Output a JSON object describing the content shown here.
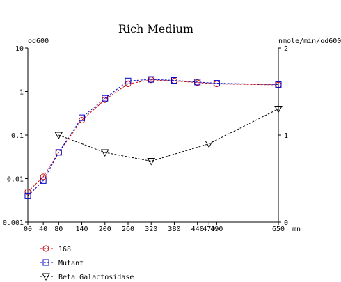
{
  "chart_data": {
    "type": "line",
    "title": "Rich Medium",
    "left_axis": {
      "label": "od600",
      "scale": "log",
      "range": [
        0.001,
        10
      ],
      "ticks": [
        {
          "value": 10,
          "label": "10"
        },
        {
          "value": 1,
          "label": "1"
        },
        {
          "value": 0.1,
          "label": "0.1"
        },
        {
          "value": 0.01,
          "label": "0.01"
        },
        {
          "value": 0.001,
          "label": "0.001"
        }
      ]
    },
    "right_axis": {
      "label": "nmole/min/od600",
      "scale": "linear",
      "range": [
        0,
        2
      ],
      "ticks": [
        {
          "value": 2,
          "label": "2"
        },
        {
          "value": 1,
          "label": "1"
        },
        {
          "value": 0,
          "label": "0"
        }
      ]
    },
    "x_axis": {
      "unit_label": "mn",
      "range": [
        0,
        650
      ],
      "ticks": [
        {
          "value": 0,
          "label": "00"
        },
        {
          "value": 40,
          "label": "40"
        },
        {
          "value": 80,
          "label": "80"
        },
        {
          "value": 140,
          "label": "140"
        },
        {
          "value": 200,
          "label": "200"
        },
        {
          "value": 260,
          "label": "260"
        },
        {
          "value": 320,
          "label": "320"
        },
        {
          "value": 380,
          "label": "380"
        },
        {
          "value": 440,
          "label": "440"
        },
        {
          "value": 470,
          "label": "470"
        },
        {
          "value": 490,
          "label": "490"
        },
        {
          "value": 650,
          "label": "650"
        }
      ]
    },
    "series": [
      {
        "name": "168",
        "color": "#cc0000",
        "marker": "circle",
        "axis": "left",
        "points": [
          [
            0,
            0.005
          ],
          [
            40,
            0.011
          ],
          [
            80,
            0.04
          ],
          [
            140,
            0.22
          ],
          [
            200,
            0.65
          ],
          [
            260,
            1.5
          ],
          [
            320,
            1.85
          ],
          [
            380,
            1.75
          ],
          [
            440,
            1.6
          ],
          [
            490,
            1.5
          ],
          [
            650,
            1.42
          ]
        ]
      },
      {
        "name": "Mutant",
        "color": "#0000cc",
        "marker": "square",
        "axis": "left",
        "points": [
          [
            0,
            0.004
          ],
          [
            40,
            0.009
          ],
          [
            80,
            0.04
          ],
          [
            140,
            0.25
          ],
          [
            200,
            0.7
          ],
          [
            260,
            1.75
          ],
          [
            320,
            1.9
          ],
          [
            380,
            1.8
          ],
          [
            440,
            1.65
          ],
          [
            490,
            1.55
          ],
          [
            650,
            1.45
          ]
        ]
      },
      {
        "name": "Beta Galactosidase",
        "color": "#000000",
        "marker": "triangle-down",
        "axis": "right",
        "points": [
          [
            80,
            1.0
          ],
          [
            200,
            0.8
          ],
          [
            320,
            0.7
          ],
          [
            470,
            0.9
          ],
          [
            650,
            1.3
          ]
        ]
      }
    ]
  }
}
